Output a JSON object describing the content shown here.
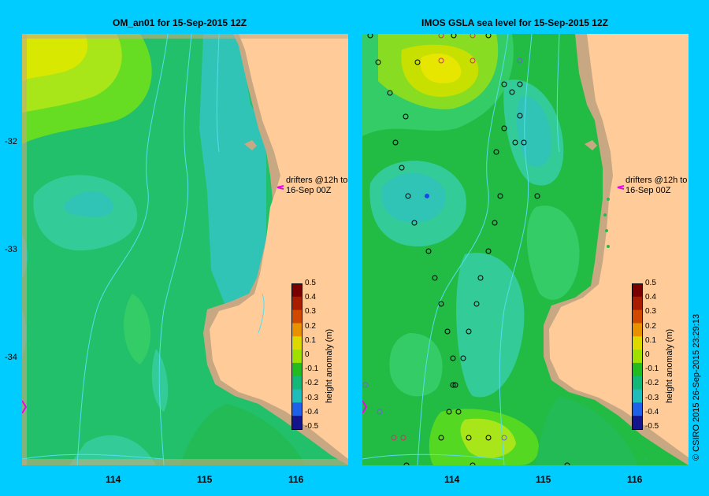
{
  "panels": [
    {
      "title": "OM_an01  for 15-Sep-2015 12Z"
    },
    {
      "title": "IMOS  GSLA sea level   for 15-Sep-2015 12Z"
    }
  ],
  "lat_labels": [
    "-32",
    "-33",
    "-34"
  ],
  "lon_labels": [
    "114",
    "115",
    "116"
  ],
  "drifters_note": {
    "line1": "drifters @12h to",
    "line2": "16-Sep 00Z"
  },
  "colorbar": {
    "title": "height anomaly (m)",
    "ticks": [
      "0.5",
      "0.4",
      "0.3",
      "0.2",
      "0.1",
      "0",
      "-0.1",
      "-0.2",
      "-0.3",
      "-0.4",
      "-0.5"
    ],
    "colors": [
      "#7a0000",
      "#a81c00",
      "#cf4a00",
      "#e89200",
      "#dcd800",
      "#a0e000",
      "#22bb22",
      "#13b878",
      "#1fbcbc",
      "#1f60e8",
      "#14148c"
    ]
  },
  "copyright": "© CSIRO 2015    26-Sep-2015 23:29:13",
  "colors": {
    "background": "#00ccff",
    "land": "#ffcc99",
    "shelf_land": "#c8a882",
    "contour_line": "#55ddee",
    "drifter_marker": "#ee00ee"
  }
}
